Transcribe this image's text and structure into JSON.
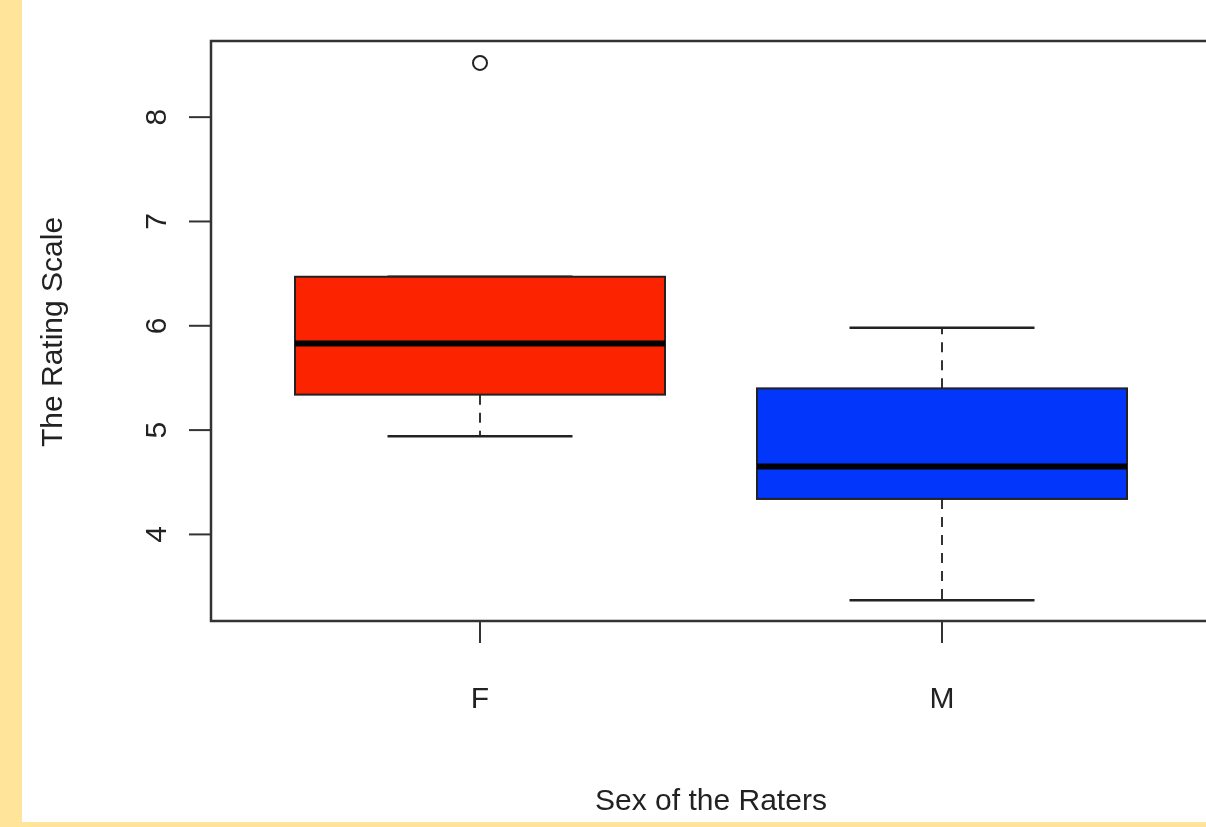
{
  "chart_data": {
    "type": "box",
    "xlabel": "Sex of the Raters",
    "ylabel": "The Rating Scale",
    "categories": [
      "F",
      "M"
    ],
    "colors": [
      "#fb2300",
      "#0237fb"
    ],
    "boxes": [
      {
        "low": 4.94,
        "q1": 5.34,
        "median": 5.83,
        "q3": 6.47,
        "high": 6.47,
        "outliers": [
          8.52
        ]
      },
      {
        "low": 3.37,
        "q1": 4.34,
        "median": 4.65,
        "q3": 5.4,
        "high": 5.98
      }
    ],
    "ylim": [
      3.17,
      8.73
    ],
    "yticks": [
      4,
      5,
      6,
      7,
      8
    ],
    "grid": false
  }
}
